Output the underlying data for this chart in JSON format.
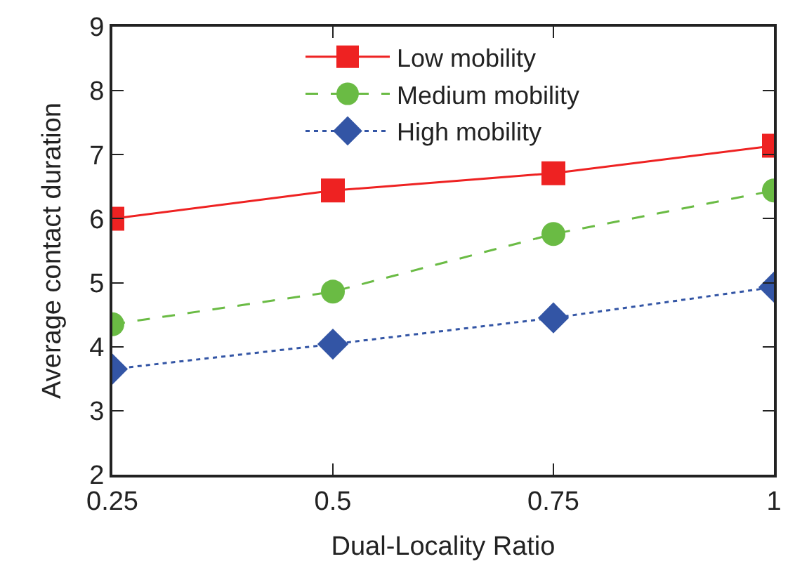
{
  "chart_data": {
    "type": "line",
    "xlabel": "Dual-Locality Ratio",
    "ylabel": "Average contact duration",
    "x": [
      0.25,
      0.5,
      0.75,
      1
    ],
    "xlim": [
      0.25,
      1
    ],
    "xticks": [
      0.25,
      0.5,
      0.75,
      1
    ],
    "ylim": [
      2,
      9
    ],
    "yticks": [
      2,
      3,
      4,
      5,
      6,
      7,
      8,
      9
    ],
    "legend": "top",
    "series": [
      {
        "name": "Low mobility",
        "color": "#ee2222",
        "marker": "square",
        "line_style": "solid",
        "values": [
          6.0,
          6.44,
          6.71,
          7.14
        ]
      },
      {
        "name": "Medium mobility",
        "color": "#6abb44",
        "marker": "circle",
        "line_style": "dashed",
        "values": [
          4.35,
          4.86,
          5.76,
          6.44
        ]
      },
      {
        "name": "High mobility",
        "color": "#3355a5",
        "marker": "diamond",
        "line_style": "dotted",
        "values": [
          3.65,
          4.04,
          4.45,
          4.93
        ]
      }
    ]
  }
}
